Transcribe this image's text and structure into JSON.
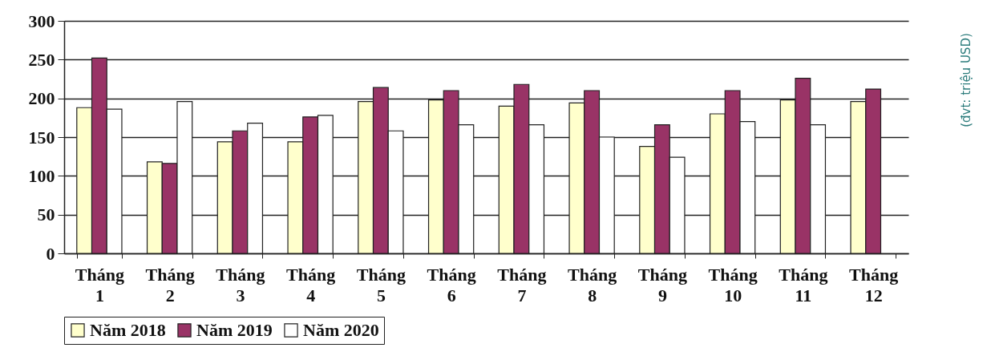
{
  "chart_data": {
    "type": "bar",
    "ylabel": "(đvt: triệu USD)",
    "categories": [
      "Tháng 1",
      "Tháng 2",
      "Tháng 3",
      "Tháng 4",
      "Tháng 5",
      "Tháng 6",
      "Tháng 7",
      "Tháng 8",
      "Tháng 9",
      "Tháng 10",
      "Tháng 11",
      "Tháng 12"
    ],
    "series": [
      {
        "name": "Năm 2018",
        "color": "#ffffcc",
        "values": [
          188,
          118,
          144,
          144,
          196,
          198,
          190,
          194,
          138,
          180,
          198,
          196
        ]
      },
      {
        "name": "Năm 2019",
        "color": "#993366",
        "values": [
          252,
          116,
          158,
          176,
          214,
          210,
          218,
          210,
          166,
          210,
          226,
          212
        ]
      },
      {
        "name": "Năm 2020",
        "color": "#ffffff",
        "values": [
          186,
          196,
          168,
          178,
          158,
          166,
          166,
          150,
          124,
          170,
          166,
          null
        ]
      }
    ],
    "ylim": [
      0,
      300
    ],
    "yticks": [
      0,
      50,
      100,
      150,
      200,
      250,
      300
    ],
    "grid": "y",
    "legend": "bottom"
  }
}
